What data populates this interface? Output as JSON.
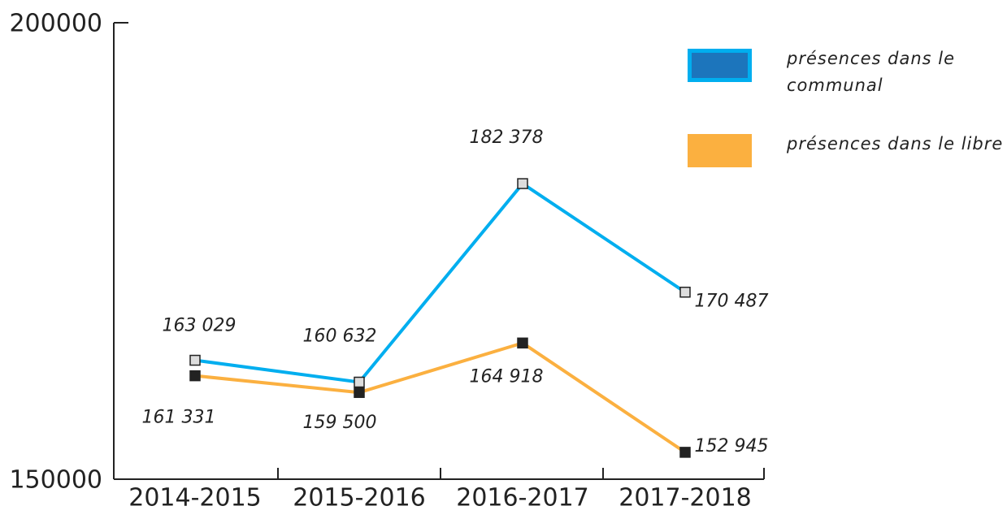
{
  "chart_data": {
    "type": "line",
    "categories": [
      "2014-2015",
      "2015-2016",
      "2016-2017",
      "2017-2018"
    ],
    "series": [
      {
        "name": "présences dans le communal",
        "color": "#00aeef",
        "values": [
          163029,
          160632,
          182378,
          170487
        ],
        "value_labels": [
          "163 029",
          "160 632",
          "182 378",
          "170 487"
        ]
      },
      {
        "name": "présences dans le libre",
        "color": "#fbb040",
        "values": [
          161331,
          159500,
          164918,
          152945
        ],
        "value_labels": [
          "161 331",
          "159 500",
          "164 918",
          "152 945"
        ]
      }
    ],
    "ylim": [
      150000,
      200000
    ],
    "yticks": [
      150000,
      200000
    ],
    "grid": false,
    "legend": "upper right"
  }
}
